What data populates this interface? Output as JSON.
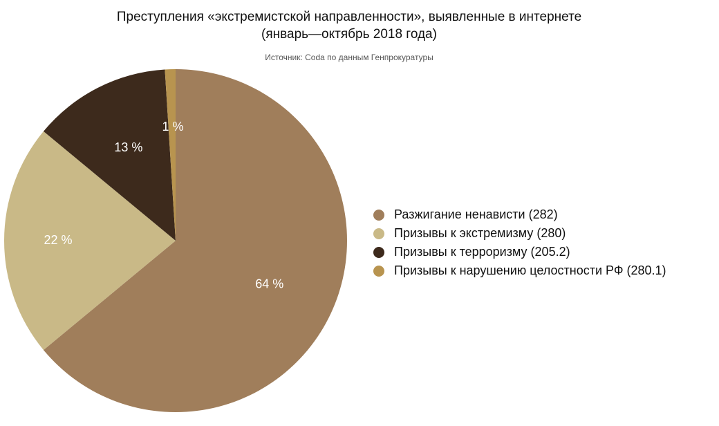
{
  "title_lines": [
    "Преступления «экстремистской направленности», выявленные в интернете",
    "(январь—октябрь 2018 года)"
  ],
  "source": "Источник: Coda по данным Генпрокуратуры",
  "chart_data": {
    "type": "pie",
    "categories": [
      "Разжигание ненависти (282)",
      "Призывы к экстремизму (280)",
      "Призывы к терроризму (205.2)",
      "Призывы к нарушению целостности РФ (280.1)"
    ],
    "values": [
      64,
      22,
      13,
      1
    ],
    "data_labels": [
      "64 %",
      "22 %",
      "13 %",
      "1 %"
    ],
    "colors": [
      "#A07E5B",
      "#C9B987",
      "#3D2A1C",
      "#B8944F"
    ],
    "legend_position": "right",
    "start_angle": "12 o'clock",
    "direction": "clockwise"
  }
}
